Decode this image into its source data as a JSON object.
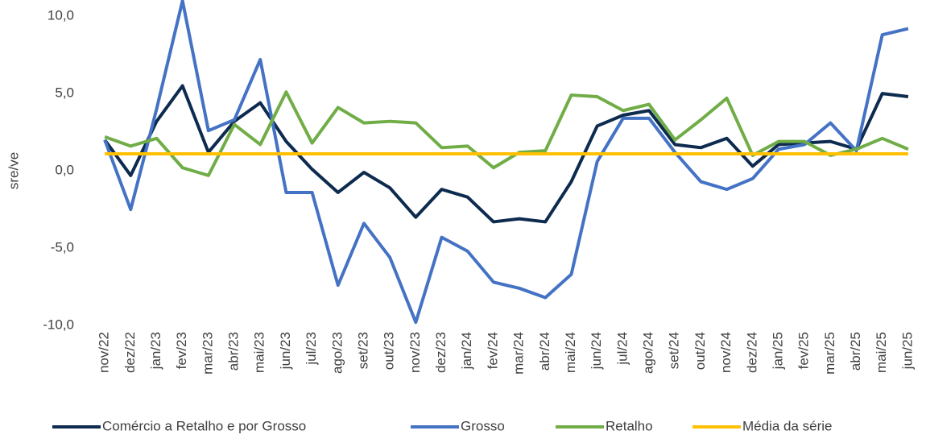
{
  "chart_data": {
    "type": "line",
    "y_label": "sre/ve",
    "categories": [
      "nov/22",
      "dez/22",
      "jan/23",
      "fev/23",
      "mar/23",
      "abr/23",
      "mai/23",
      "jun/23",
      "jul/23",
      "ago/23",
      "set/23",
      "out/23",
      "nov/23",
      "dez/23",
      "jan/24",
      "fev/24",
      "mar/24",
      "abr/24",
      "mai/24",
      "jun/24",
      "jul/24",
      "ago/24",
      "set/24",
      "out/24",
      "nov/24",
      "dez/24",
      "jan/25",
      "fev/25",
      "mar/25",
      "abr/25",
      "mai/25",
      "jun/25"
    ],
    "series": [
      {
        "name": "Comércio a Retalho e por Grosso",
        "color": "#0d2a4f",
        "values": [
          2.0,
          -0.3,
          3.2,
          5.5,
          1.2,
          3.2,
          4.4,
          1.9,
          0.1,
          -1.4,
          -0.1,
          -1.1,
          -3.0,
          -1.2,
          -1.7,
          -3.3,
          -3.1,
          -3.3,
          -0.7,
          2.9,
          3.6,
          3.9,
          1.7,
          1.5,
          2.1,
          0.3,
          1.7,
          1.8,
          1.9,
          1.4,
          5.0,
          4.8
        ]
      },
      {
        "name": "Grosso",
        "color": "#4472c4",
        "values": [
          2.0,
          -2.5,
          4.0,
          11.0,
          2.6,
          3.3,
          7.2,
          -1.4,
          -1.4,
          -7.4,
          -3.4,
          -5.6,
          -9.8,
          -4.3,
          -5.2,
          -7.2,
          -7.6,
          -8.2,
          -6.7,
          0.6,
          3.4,
          3.4,
          1.2,
          -0.7,
          -1.2,
          -0.5,
          1.4,
          1.7,
          3.1,
          1.3,
          8.8,
          9.2
        ]
      },
      {
        "name": "Retalho",
        "color": "#70ad47",
        "values": [
          2.2,
          1.6,
          2.1,
          0.2,
          -0.3,
          3.0,
          1.7,
          5.1,
          1.8,
          4.1,
          3.1,
          3.2,
          3.1,
          1.5,
          1.6,
          0.2,
          1.2,
          1.3,
          4.9,
          4.8,
          3.9,
          4.3,
          2.0,
          3.3,
          4.7,
          1.0,
          1.9,
          1.9,
          1.0,
          1.4,
          2.1,
          1.4
        ]
      },
      {
        "name": "Média da série",
        "color": "#ffc000",
        "values": [
          1.1,
          1.1,
          1.1,
          1.1,
          1.1,
          1.1,
          1.1,
          1.1,
          1.1,
          1.1,
          1.1,
          1.1,
          1.1,
          1.1,
          1.1,
          1.1,
          1.1,
          1.1,
          1.1,
          1.1,
          1.1,
          1.1,
          1.1,
          1.1,
          1.1,
          1.1,
          1.1,
          1.1,
          1.1,
          1.1,
          1.1,
          1.1
        ]
      }
    ],
    "ylim": [
      -10,
      11
    ],
    "yticks": [
      {
        "value": -10,
        "label": "-10,0"
      },
      {
        "value": -5,
        "label": "-5,0"
      },
      {
        "value": 0,
        "label": "0,0"
      },
      {
        "value": 5,
        "label": "5,0"
      },
      {
        "value": 10,
        "label": "10,0"
      }
    ],
    "grid": false,
    "legend": "bottom"
  }
}
